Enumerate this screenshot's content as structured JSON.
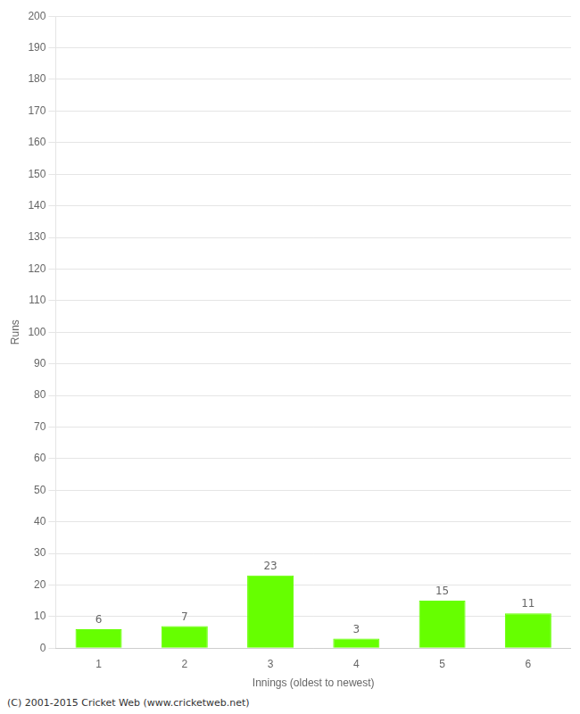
{
  "chart_data": {
    "type": "bar",
    "categories": [
      1,
      2,
      3,
      4,
      5,
      6
    ],
    "values": [
      6,
      7,
      23,
      3,
      15,
      11
    ],
    "color": "#66ff00",
    "xlabel": "Innings (oldest to newest)",
    "ylabel": "Runs",
    "ylim": [
      0,
      200
    ],
    "yticks": [
      0,
      10,
      20,
      30,
      40,
      50,
      60,
      70,
      80,
      90,
      100,
      110,
      120,
      130,
      140,
      150,
      160,
      170,
      180,
      190,
      200
    ],
    "grid": true,
    "data_labels": true,
    "footer": "(C) 2001-2015 Cricket Web (www.cricketweb.net)"
  }
}
